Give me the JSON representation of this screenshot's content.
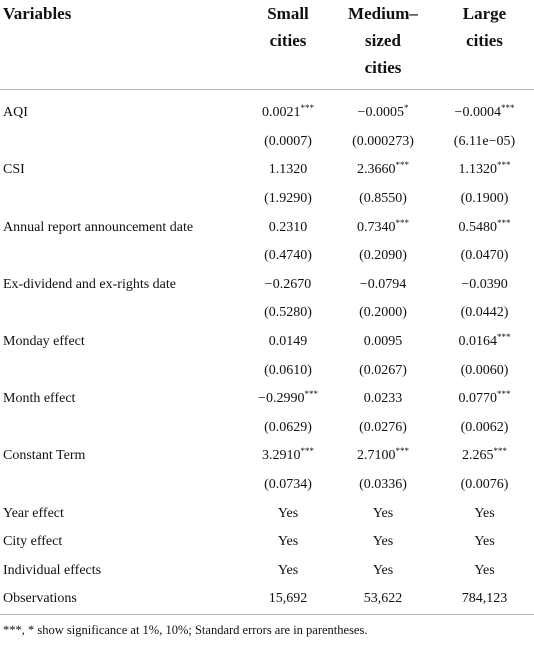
{
  "table": {
    "header": [
      [
        "Variables"
      ],
      [
        "Small",
        "cities"
      ],
      [
        "Medium–",
        "sized",
        "cities"
      ],
      [
        "Large",
        "cities"
      ]
    ],
    "rows": [
      {
        "label": "AQI",
        "values": [
          {
            "text": "0.0021",
            "sig": "***"
          },
          {
            "text": "−0.0005",
            "sig": "*"
          },
          {
            "text": "−0.0004",
            "sig": "***"
          }
        ],
        "se": [
          "(0.0007)",
          "(0.000273)",
          "(6.11e−05)"
        ]
      },
      {
        "label": "CSI",
        "values": [
          "1.1320",
          {
            "text": "2.3660",
            "sig": "***"
          },
          {
            "text": "1.1320",
            "sig": "***"
          }
        ],
        "se": [
          "(1.9290)",
          "(0.8550)",
          "(0.1900)"
        ]
      },
      {
        "label": "Annual report announcement date",
        "values": [
          "0.2310",
          {
            "text": "0.7340",
            "sig": "***"
          },
          {
            "text": "0.5480",
            "sig": "***"
          }
        ],
        "se": [
          "(0.4740)",
          "(0.2090)",
          "(0.0470)"
        ]
      },
      {
        "label": "Ex-dividend and ex-rights date",
        "values": [
          "−0.2670",
          "−0.0794",
          "−0.0390"
        ],
        "se": [
          "(0.5280)",
          "(0.2000)",
          "(0.0442)"
        ]
      },
      {
        "label": "Monday effect",
        "values": [
          "0.0149",
          "0.0095",
          {
            "text": "0.0164",
            "sig": "***"
          }
        ],
        "se": [
          "(0.0610)",
          "(0.0267)",
          "(0.0060)"
        ]
      },
      {
        "label": "Month effect",
        "values": [
          {
            "text": "−0.2990",
            "sig": "***"
          },
          "0.0233",
          {
            "text": "0.0770",
            "sig": "***"
          }
        ],
        "se": [
          "(0.0629)",
          "(0.0276)",
          "(0.0062)"
        ]
      },
      {
        "label": "Constant Term",
        "values": [
          {
            "text": "3.2910",
            "sig": "***"
          },
          {
            "text": "2.7100",
            "sig": "***"
          },
          {
            "text": "2.265",
            "sig": "***"
          }
        ],
        "se": [
          "(0.0734)",
          "(0.0336)",
          "(0.0076)"
        ]
      },
      {
        "label": "Year effect",
        "values": [
          "Yes",
          "Yes",
          "Yes"
        ]
      },
      {
        "label": "City effect",
        "values": [
          "Yes",
          "Yes",
          "Yes"
        ]
      },
      {
        "label": "Individual effects",
        "values": [
          "Yes",
          "Yes",
          "Yes"
        ]
      },
      {
        "label": "Observations",
        "values": [
          "15,692",
          "53,622",
          "784,123"
        ]
      }
    ],
    "footnote": "***, * show significance at 1%, 10%; Standard errors are in parentheses."
  }
}
